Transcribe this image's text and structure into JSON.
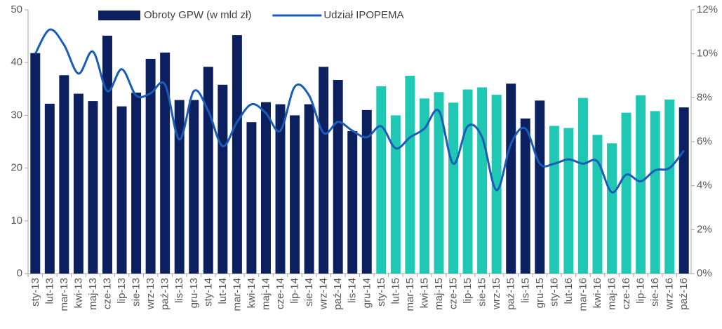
{
  "chart_data": {
    "type": "bar_line",
    "categories": [
      "sty-13",
      "lut-13",
      "mar-13",
      "kwi-13",
      "maj-13",
      "cze-13",
      "lip-13",
      "sie-13",
      "wrz-13",
      "paź-13",
      "lis-13",
      "gru-13",
      "sty-14",
      "lut-14",
      "mar-14",
      "kwi-14",
      "maj-14",
      "cze-14",
      "lip-14",
      "sie-14",
      "wrz-14",
      "paź-14",
      "lis-14",
      "gru-14",
      "sty-15",
      "lut-15",
      "mar-15",
      "kwi-15",
      "maj-15",
      "cze-15",
      "lip-15",
      "sie-15",
      "wrz-15",
      "paź-15",
      "lis-15",
      "gru-15",
      "sty-16",
      "lut-16",
      "mar-16",
      "kwi-16",
      "maj-16",
      "cze-16",
      "lip-16",
      "sie-16",
      "wrz-16",
      "paź-16"
    ],
    "series": [
      {
        "name": "Obroty GPW (w mld zł)",
        "type": "bar",
        "color": "#0c1f5e",
        "colors": [
          "#0c1f5e",
          "#0c1f5e",
          "#0c1f5e",
          "#0c1f5e",
          "#0c1f5e",
          "#0c1f5e",
          "#0c1f5e",
          "#0c1f5e",
          "#0c1f5e",
          "#0c1f5e",
          "#0c1f5e",
          "#0c1f5e",
          "#0c1f5e",
          "#0c1f5e",
          "#0c1f5e",
          "#0c1f5e",
          "#0c1f5e",
          "#0c1f5e",
          "#0c1f5e",
          "#0c1f5e",
          "#0c1f5e",
          "#0c1f5e",
          "#0c1f5e",
          "#0c1f5e",
          "#1ec8b2",
          "#1ec8b2",
          "#1ec8b2",
          "#1ec8b2",
          "#1ec8b2",
          "#1ec8b2",
          "#1ec8b2",
          "#1ec8b2",
          "#1ec8b2",
          "#0c1f5e",
          "#0c1f5e",
          "#0c1f5e",
          "#1ec8b2",
          "#1ec8b2",
          "#1ec8b2",
          "#1ec8b2",
          "#1ec8b2",
          "#1ec8b2",
          "#1ec8b2",
          "#1ec8b2",
          "#1ec8b2",
          "#0c1f5e"
        ],
        "values": [
          41.8,
          32.2,
          37.6,
          34.1,
          32.7,
          45.1,
          31.7,
          34.3,
          40.7,
          41.9,
          32.9,
          32.9,
          39.2,
          35.8,
          45.2,
          28.7,
          32.5,
          32.1,
          30,
          32.1,
          39.2,
          36.7,
          27,
          31,
          35.5,
          30,
          37.5,
          33.2,
          34.4,
          32.4,
          34.9,
          35.3,
          33.9,
          36,
          29.4,
          32.8,
          28,
          27.6,
          33.3,
          26.3,
          24.7,
          30.5,
          33.8,
          30.8,
          33,
          31.5
        ]
      },
      {
        "name": "Udział IPOPEMA",
        "type": "line",
        "axis": "y2",
        "color": "#1a5cb8",
        "values": [
          10.0,
          11.1,
          10.4,
          9.1,
          10.1,
          8.3,
          9.3,
          8.1,
          8.2,
          8.6,
          6.1,
          8.3,
          7.4,
          5.8,
          6.9,
          7.7,
          7.3,
          6.5,
          8.5,
          8.1,
          6.4,
          6.9,
          6.5,
          6.2,
          6.7,
          5.7,
          6.2,
          6.6,
          7.4,
          5.0,
          6.7,
          6.2,
          3.8,
          5.9,
          6.6,
          5.0,
          5.0,
          5.2,
          5.0,
          5.1,
          3.7,
          4.5,
          4.2,
          4.7,
          4.8,
          5.6
        ]
      }
    ],
    "ylim": [
      0,
      50
    ],
    "yticks": [
      0,
      10,
      20,
      30,
      40,
      50
    ],
    "y2lim": [
      0,
      12
    ],
    "y2ticks": [
      {
        "value": 0,
        "label": "0%"
      },
      {
        "value": 2,
        "label": "2%"
      },
      {
        "value": 4,
        "label": "4%"
      },
      {
        "value": 6,
        "label": "6%"
      },
      {
        "value": 8,
        "label": "8%"
      },
      {
        "value": 10,
        "label": "10%"
      },
      {
        "value": 12,
        "label": "12%"
      }
    ],
    "grid": false,
    "legend": "top"
  }
}
